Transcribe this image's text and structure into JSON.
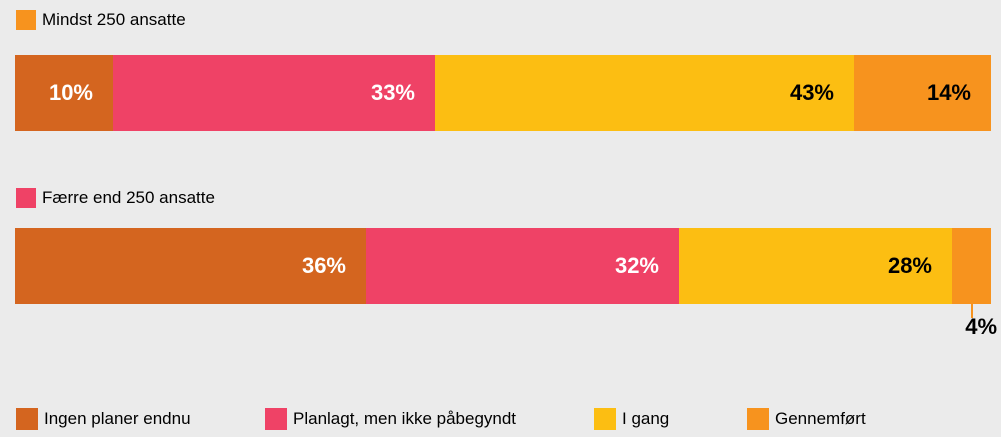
{
  "colors": {
    "ingen": "#d4651f",
    "planlagt": "#ef4266",
    "igang": "#fcbe12",
    "gennemfort": "#f7931e",
    "text_light": "#ffffff",
    "text_dark": "#000000"
  },
  "chart_data": {
    "type": "bar",
    "orientation": "horizontal",
    "stacked": true,
    "unit": "%",
    "categories": [
      "Mindst 250 ansatte",
      "Færre end 250 ansatte"
    ],
    "series": [
      {
        "name": "Ingen planer endnu",
        "values": [
          10,
          36
        ],
        "labels": [
          "10%",
          "36%"
        ]
      },
      {
        "name": "Planlagt, men ikke påbegyndt",
        "values": [
          33,
          32
        ],
        "labels": [
          "33%",
          "32%"
        ]
      },
      {
        "name": "I gang",
        "values": [
          43,
          28
        ],
        "labels": [
          "43%",
          "28%"
        ]
      },
      {
        "name": "Gennemført",
        "values": [
          14,
          4
        ],
        "labels": [
          "14%",
          "4%"
        ]
      }
    ],
    "xlim": [
      0,
      100
    ],
    "grid": false,
    "legend": "bottom"
  }
}
